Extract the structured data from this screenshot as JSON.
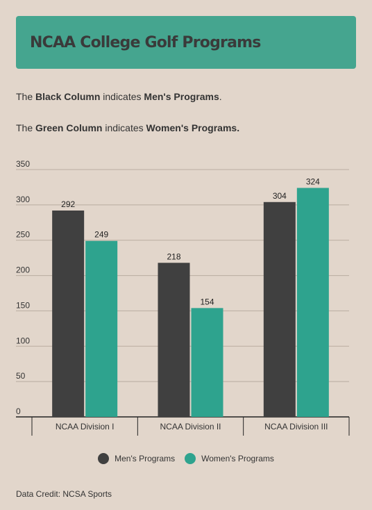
{
  "header": {
    "title": "NCAA College Golf Programs"
  },
  "notes": {
    "line1": {
      "prefix": "The ",
      "bold1": "Black Column",
      "middle": " indicates ",
      "bold2": "Men's Programs",
      "suffix": "."
    },
    "line2": {
      "prefix": "The ",
      "bold1": "Green Column",
      "middle": " indicates ",
      "bold2": "Women's Programs.",
      "suffix": ""
    }
  },
  "credit": "Data Credit: NCSA Sports",
  "chart_data": {
    "type": "bar",
    "categories": [
      "NCAA Division I",
      "NCAA Division II",
      "NCAA Division III"
    ],
    "series": [
      {
        "name": "Men's Programs",
        "values": [
          292,
          218,
          304
        ],
        "color": "#404040"
      },
      {
        "name": "Women's Programs",
        "values": [
          249,
          154,
          324
        ],
        "color": "#2ea38e"
      }
    ],
    "ylim": [
      0,
      350
    ],
    "yticks": [
      0,
      50,
      100,
      150,
      200,
      250,
      300,
      350
    ],
    "grid": true,
    "data_labels": true,
    "legend": "bottom-center"
  }
}
